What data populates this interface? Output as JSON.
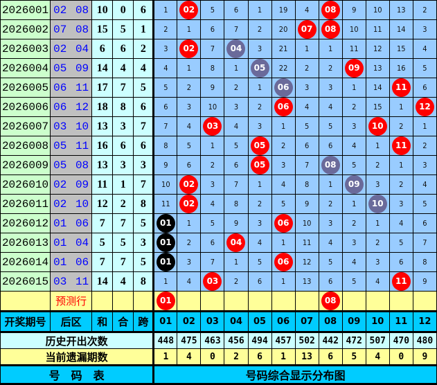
{
  "draws": [
    {
      "period": "2026001",
      "back": "02 08",
      "sum": "10",
      "he": "0",
      "kua": "6",
      "cells": [
        "1",
        "02",
        "5",
        "6",
        "1",
        "19",
        "4",
        "08",
        "9",
        "10",
        "13",
        "2"
      ],
      "balls": {
        "1": "red",
        "7": "red"
      }
    },
    {
      "period": "2026002",
      "back": "07 08",
      "sum": "15",
      "he": "5",
      "kua": "1",
      "cells": [
        "2",
        "1",
        "6",
        "7",
        "2",
        "20",
        "07",
        "08",
        "10",
        "11",
        "14",
        "3"
      ],
      "balls": {
        "6": "red",
        "7": "red"
      }
    },
    {
      "period": "2026003",
      "back": "02 04",
      "sum": "6",
      "he": "6",
      "kua": "2",
      "cells": [
        "3",
        "02",
        "7",
        "04",
        "3",
        "21",
        "1",
        "1",
        "11",
        "12",
        "15",
        "4"
      ],
      "balls": {
        "1": "red",
        "3": "gray"
      }
    },
    {
      "period": "2026004",
      "back": "05 09",
      "sum": "14",
      "he": "4",
      "kua": "4",
      "cells": [
        "4",
        "1",
        "8",
        "1",
        "05",
        "22",
        "2",
        "2",
        "09",
        "13",
        "16",
        "5"
      ],
      "balls": {
        "4": "gray",
        "8": "red"
      }
    },
    {
      "period": "2026005",
      "back": "06 11",
      "sum": "17",
      "he": "7",
      "kua": "5",
      "cells": [
        "5",
        "2",
        "9",
        "2",
        "1",
        "06",
        "3",
        "3",
        "1",
        "14",
        "11",
        "6"
      ],
      "balls": {
        "5": "gray",
        "10": "red"
      }
    },
    {
      "period": "2026006",
      "back": "06 12",
      "sum": "18",
      "he": "8",
      "kua": "6",
      "cells": [
        "6",
        "3",
        "10",
        "3",
        "2",
        "06",
        "4",
        "4",
        "2",
        "15",
        "1",
        "12"
      ],
      "balls": {
        "5": "red",
        "11": "red"
      }
    },
    {
      "period": "2026007",
      "back": "03 10",
      "sum": "13",
      "he": "3",
      "kua": "7",
      "cells": [
        "7",
        "4",
        "03",
        "4",
        "3",
        "1",
        "5",
        "5",
        "3",
        "10",
        "2",
        "1"
      ],
      "balls": {
        "2": "red",
        "9": "red"
      }
    },
    {
      "period": "2026008",
      "back": "05 11",
      "sum": "16",
      "he": "6",
      "kua": "6",
      "cells": [
        "8",
        "5",
        "1",
        "5",
        "05",
        "2",
        "6",
        "6",
        "4",
        "1",
        "11",
        "2"
      ],
      "balls": {
        "4": "red",
        "10": "red"
      }
    },
    {
      "period": "2026009",
      "back": "05 08",
      "sum": "13",
      "he": "3",
      "kua": "3",
      "cells": [
        "9",
        "6",
        "2",
        "6",
        "05",
        "3",
        "7",
        "08",
        "5",
        "2",
        "1",
        "3"
      ],
      "balls": {
        "4": "red",
        "7": "gray"
      }
    },
    {
      "period": "2026010",
      "back": "02 09",
      "sum": "11",
      "he": "1",
      "kua": "7",
      "cells": [
        "10",
        "02",
        "3",
        "7",
        "1",
        "4",
        "8",
        "1",
        "09",
        "3",
        "2",
        "4"
      ],
      "balls": {
        "1": "red",
        "8": "gray"
      }
    },
    {
      "period": "2026011",
      "back": "02 10",
      "sum": "12",
      "he": "2",
      "kua": "8",
      "cells": [
        "11",
        "02",
        "4",
        "8",
        "2",
        "5",
        "9",
        "2",
        "1",
        "10",
        "3",
        "5"
      ],
      "balls": {
        "1": "red",
        "9": "gray"
      }
    },
    {
      "period": "2026012",
      "back": "01 06",
      "sum": "7",
      "he": "7",
      "kua": "5",
      "cells": [
        "01",
        "1",
        "5",
        "9",
        "3",
        "06",
        "10",
        "3",
        "2",
        "1",
        "4",
        "6"
      ],
      "balls": {
        "0": "black",
        "5": "red"
      }
    },
    {
      "period": "2026013",
      "back": "01 04",
      "sum": "5",
      "he": "5",
      "kua": "3",
      "cells": [
        "01",
        "2",
        "6",
        "04",
        "4",
        "1",
        "11",
        "4",
        "3",
        "2",
        "5",
        "7"
      ],
      "balls": {
        "0": "black",
        "3": "red"
      }
    },
    {
      "period": "2026014",
      "back": "01 06",
      "sum": "7",
      "he": "7",
      "kua": "5",
      "cells": [
        "01",
        "3",
        "7",
        "1",
        "5",
        "06",
        "12",
        "5",
        "4",
        "3",
        "6",
        "8"
      ],
      "balls": {
        "0": "black",
        "5": "red"
      }
    },
    {
      "period": "2026015",
      "back": "03 11",
      "sum": "14",
      "he": "4",
      "kua": "8",
      "cells": [
        "1",
        "4",
        "03",
        "2",
        "6",
        "1",
        "13",
        "6",
        "5",
        "4",
        "11",
        "9"
      ],
      "balls": {
        "2": "red",
        "10": "red"
      }
    }
  ],
  "prediction": {
    "label": "预测行",
    "cells": [
      "01",
      "",
      "",
      "",
      "",
      "",
      "",
      "08",
      "",
      "",
      "",
      ""
    ],
    "balls": {
      "0": "red",
      "7": "red"
    }
  },
  "header": {
    "period": "开奖期号",
    "back": "后区",
    "sum": "和",
    "he": "合",
    "kua": "跨",
    "numbers": [
      "01",
      "02",
      "03",
      "04",
      "05",
      "06",
      "07",
      "08",
      "09",
      "10",
      "11",
      "12"
    ]
  },
  "history": {
    "label": "历史开出次数",
    "values": [
      "448",
      "475",
      "463",
      "456",
      "494",
      "457",
      "502",
      "442",
      "472",
      "507",
      "470",
      "480"
    ]
  },
  "current_miss": {
    "label": "当前遗漏期数",
    "values": [
      "1",
      "4",
      "0",
      "2",
      "6",
      "1",
      "13",
      "6",
      "5",
      "4",
      "0",
      "9"
    ]
  },
  "footer": {
    "left": "号　码　表",
    "right": "号码综合显示分布图"
  },
  "colors": {
    "red_ball": "#ff0000",
    "repeat_ball": "#6a6a9a",
    "black_ball": "#000000",
    "header": "#00ccff",
    "grid": "#99ccff"
  }
}
